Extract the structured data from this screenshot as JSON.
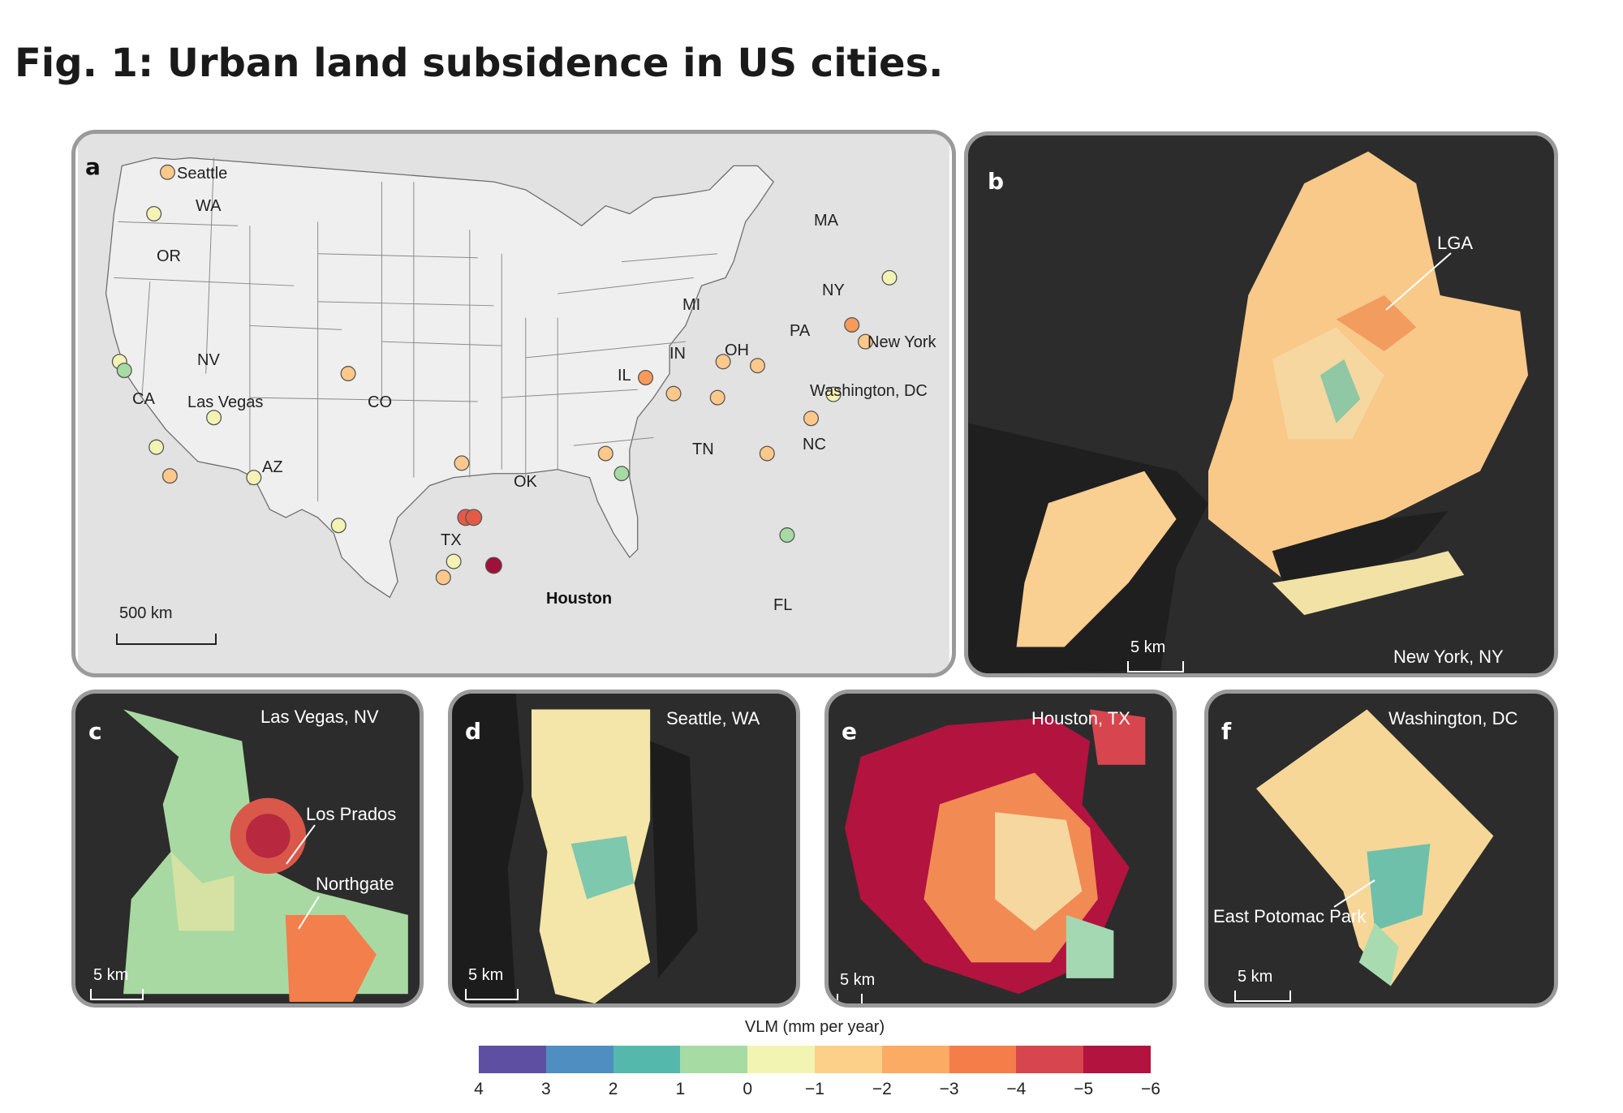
{
  "figure_title": "Fig. 1: Urban land subsidence in US cities.",
  "panels": {
    "a": {
      "label": "a",
      "states": [
        "WA",
        "OR",
        "NV",
        "CA",
        "AZ",
        "CO",
        "TX",
        "OK",
        "IL",
        "IN",
        "MI",
        "OH",
        "PA",
        "NY",
        "MA",
        "TN",
        "NC",
        "FL"
      ],
      "cities": [
        "Seattle",
        "Las Vegas",
        "New York",
        "Washington, DC",
        "Houston"
      ],
      "scale": "500 km"
    },
    "b": {
      "label": "b",
      "title": "New York, NY",
      "callouts": [
        "LGA"
      ],
      "scale": "5 km"
    },
    "c": {
      "label": "c",
      "title": "Las Vegas, NV",
      "callouts": [
        "Los Prados",
        "Northgate"
      ],
      "scale": "5 km"
    },
    "d": {
      "label": "d",
      "title": "Seattle, WA",
      "scale": "5 km"
    },
    "e": {
      "label": "e",
      "title": "Houston, TX",
      "scale": "5 km"
    },
    "f": {
      "label": "f",
      "title": "Washington, DC",
      "callouts": [
        "East Potomac Park"
      ],
      "scale": "5 km"
    }
  },
  "legend": {
    "title": "VLM (mm per year)",
    "ticks": [
      "4",
      "3",
      "2",
      "1",
      "0",
      "−1",
      "−2",
      "−3",
      "−4",
      "−5",
      "−6"
    ],
    "colors": [
      "#5e4fa2",
      "#4f8ec0",
      "#54b9ac",
      "#a6dba4",
      "#f2f5b1",
      "#fdd08a",
      "#fbab63",
      "#f57d4a",
      "#d7464e",
      "#b2133f"
    ]
  },
  "colors": {
    "map_background": "#e2e2e2",
    "land": "#efefef",
    "dark_panel": "#2c2c2c"
  }
}
